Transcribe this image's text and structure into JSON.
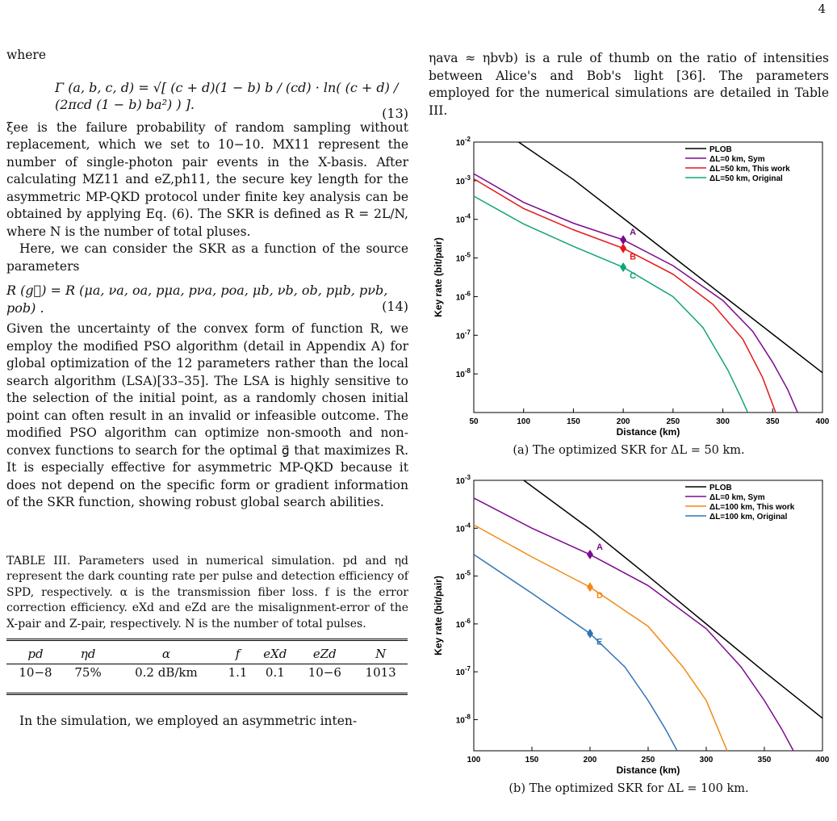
{
  "page_number": "4",
  "left_column": {
    "where": "where",
    "eq13": {
      "body": "Γ (a, b, c, d) = √[ (c + d)(1 − b) b / (cd) · ln( (c + d) / (2πcd (1 − b) ba²) ) ].",
      "number": "(13)"
    },
    "para1": "ξee is the failure probability of random sampling without replacement, which we set to 10−10. MX11 represent the number of single-photon pair events in the X-basis. After calculating MZ11 and eZ,ph11, the secure key length for the asymmetric MP-QKD protocol under finite key analysis can be obtained by applying Eq. (6). The SKR is defined as R = 2L/N, where N is the number of total pluses.",
    "para2": "Here, we can consider the SKR as a function of the source parameters",
    "eq14": {
      "body": "R (g⃗) = R (μa, νa, oa, pμa, pνa, poa, μb, νb, ob, pμb, pνb, pob) .",
      "number": "(14)"
    },
    "para3": "Given the uncertainty of the convex form of function R, we employ the modified PSO algorithm (detail in Appendix A) for global optimization of the 12 parameters rather than the local search algorithm (LSA)[33–35]. The LSA is highly sensitive to the selection of the initial point, as a randomly chosen initial point can often result in an invalid or infeasible outcome. The modified PSO algorithm can optimize non-smooth and non-convex functions to search for the optimal g⃗ that maximizes R. It is especially effective for asymmetric MP-QKD because it does not depend on the specific form or gradient information of the SKR function, showing robust global search abilities.",
    "table_caption": "TABLE III. Parameters used in numerical simulation. pd and ηd represent the dark counting rate per pulse and detection efficiency of SPD, respectively. α is the transmission fiber loss. f is the error correction efficiency. eXd and eZd are the misalignment-error of the X-pair and Z-pair, respectively. N is the number of total pulses.",
    "table": {
      "headers": [
        "pd",
        "ηd",
        "α",
        "f",
        "eXd",
        "eZd",
        "N"
      ],
      "row": [
        "10−8",
        "75%",
        "0.2 dB/km",
        "1.1",
        "0.1",
        "10−6",
        "1013"
      ]
    },
    "para4": "In the simulation, we employed an asymmetric inten-"
  },
  "right_column": {
    "para1": "ηava ≈ ηbvb) is a rule of thumb on the ratio of intensities between Alice's and Bob's light [36]. The parameters employed for the numerical simulations are detailed in Table III."
  },
  "chart_data": [
    {
      "type": "line",
      "caption": "(a) The optimized SKR for ΔL = 50 km.",
      "xlabel": "Distance (km)",
      "ylabel": "Key rate (bit/pair)",
      "xlim": [
        50,
        400
      ],
      "ylim_log10": [
        -9,
        -2
      ],
      "log_y": true,
      "xticks": [
        50,
        100,
        150,
        200,
        250,
        300,
        350,
        400
      ],
      "ytick_labels": [
        "10-2",
        "10-3",
        "10-4",
        "10-5",
        "10-6",
        "10-7",
        "10-8"
      ],
      "ytick_values": [
        -2,
        -3,
        -4,
        -5,
        -6,
        -7,
        -8
      ],
      "legend_position": "top-right",
      "series": [
        {
          "name": "PLOB",
          "color": "#000000",
          "x": [
            95,
            150,
            200,
            250,
            300,
            350,
            400
          ],
          "log10y": [
            -2.0,
            -2.97,
            -3.97,
            -4.97,
            -5.97,
            -6.97,
            -7.97
          ]
        },
        {
          "name": "ΔL=0 km, Sym",
          "color": "#7b0a8f",
          "x": [
            50,
            100,
            150,
            200,
            250,
            300,
            330,
            350,
            365,
            375
          ],
          "log10y": [
            -2.82,
            -3.56,
            -4.1,
            -4.53,
            -5.2,
            -6.1,
            -6.9,
            -7.7,
            -8.4,
            -9.0
          ]
        },
        {
          "name": "ΔL=50 km, This work",
          "color": "#e5171a",
          "x": [
            50,
            100,
            150,
            200,
            250,
            290,
            320,
            340,
            353
          ],
          "log10y": [
            -2.95,
            -3.72,
            -4.27,
            -4.75,
            -5.42,
            -6.2,
            -7.1,
            -8.1,
            -9.0
          ]
        },
        {
          "name": "ΔL=50 km, Original",
          "color": "#12a37c",
          "x": [
            50,
            100,
            150,
            200,
            250,
            280,
            305,
            318,
            325
          ],
          "log10y": [
            -3.4,
            -4.12,
            -4.7,
            -5.24,
            -6.0,
            -6.8,
            -7.9,
            -8.6,
            -9.0
          ]
        }
      ],
      "annotations": [
        {
          "label": "A",
          "x": 200,
          "log10y": -4.53,
          "color": "#7b0a8f"
        },
        {
          "label": "B",
          "x": 200,
          "log10y": -4.75,
          "color": "#e5171a"
        },
        {
          "label": "C",
          "x": 200,
          "log10y": -5.24,
          "color": "#12a37c"
        }
      ]
    },
    {
      "type": "line",
      "caption": "(b) The optimized SKR for ΔL = 100 km.",
      "xlabel": "Distance (km)",
      "ylabel": "Key rate (bit/pair)",
      "xlim": [
        100,
        400
      ],
      "ylim_log10": [
        -8.65,
        -3
      ],
      "log_y": true,
      "xticks": [
        100,
        150,
        200,
        250,
        300,
        350,
        400
      ],
      "ytick_labels": [
        "10-3",
        "10-4",
        "10-5",
        "10-6",
        "10-7",
        "10-8"
      ],
      "ytick_values": [
        -3,
        -4,
        -5,
        -6,
        -7,
        -8
      ],
      "legend_position": "top-right",
      "series": [
        {
          "name": "PLOB",
          "color": "#000000",
          "x": [
            143,
            200,
            250,
            300,
            350,
            400
          ],
          "log10y": [
            -3.0,
            -4.02,
            -5.0,
            -6.0,
            -7.0,
            -7.97
          ]
        },
        {
          "name": "ΔL=0 km, Sym",
          "color": "#7b0a8f",
          "x": [
            100,
            150,
            200,
            250,
            300,
            330,
            350,
            365,
            375
          ],
          "log10y": [
            -3.37,
            -4.0,
            -4.55,
            -5.2,
            -6.1,
            -6.9,
            -7.6,
            -8.2,
            -8.65
          ]
        },
        {
          "name": "ΔL=100 km, This work",
          "color": "#f28a14",
          "x": [
            100,
            150,
            200,
            250,
            280,
            300,
            312,
            318
          ],
          "log10y": [
            -3.93,
            -4.6,
            -5.23,
            -6.05,
            -6.9,
            -7.6,
            -8.3,
            -8.65
          ]
        },
        {
          "name": "ΔL=100 km, Original",
          "color": "#2f74b5",
          "x": [
            100,
            150,
            200,
            230,
            250,
            265,
            275
          ],
          "log10y": [
            -4.55,
            -5.36,
            -6.2,
            -6.9,
            -7.6,
            -8.2,
            -8.65
          ]
        }
      ],
      "annotations": [
        {
          "label": "A",
          "x": 200,
          "log10y": -4.55,
          "color": "#7b0a8f"
        },
        {
          "label": "D",
          "x": 200,
          "log10y": -5.23,
          "color": "#f28a14"
        },
        {
          "label": "E",
          "x": 200,
          "log10y": -6.2,
          "color": "#2f74b5"
        }
      ]
    }
  ]
}
